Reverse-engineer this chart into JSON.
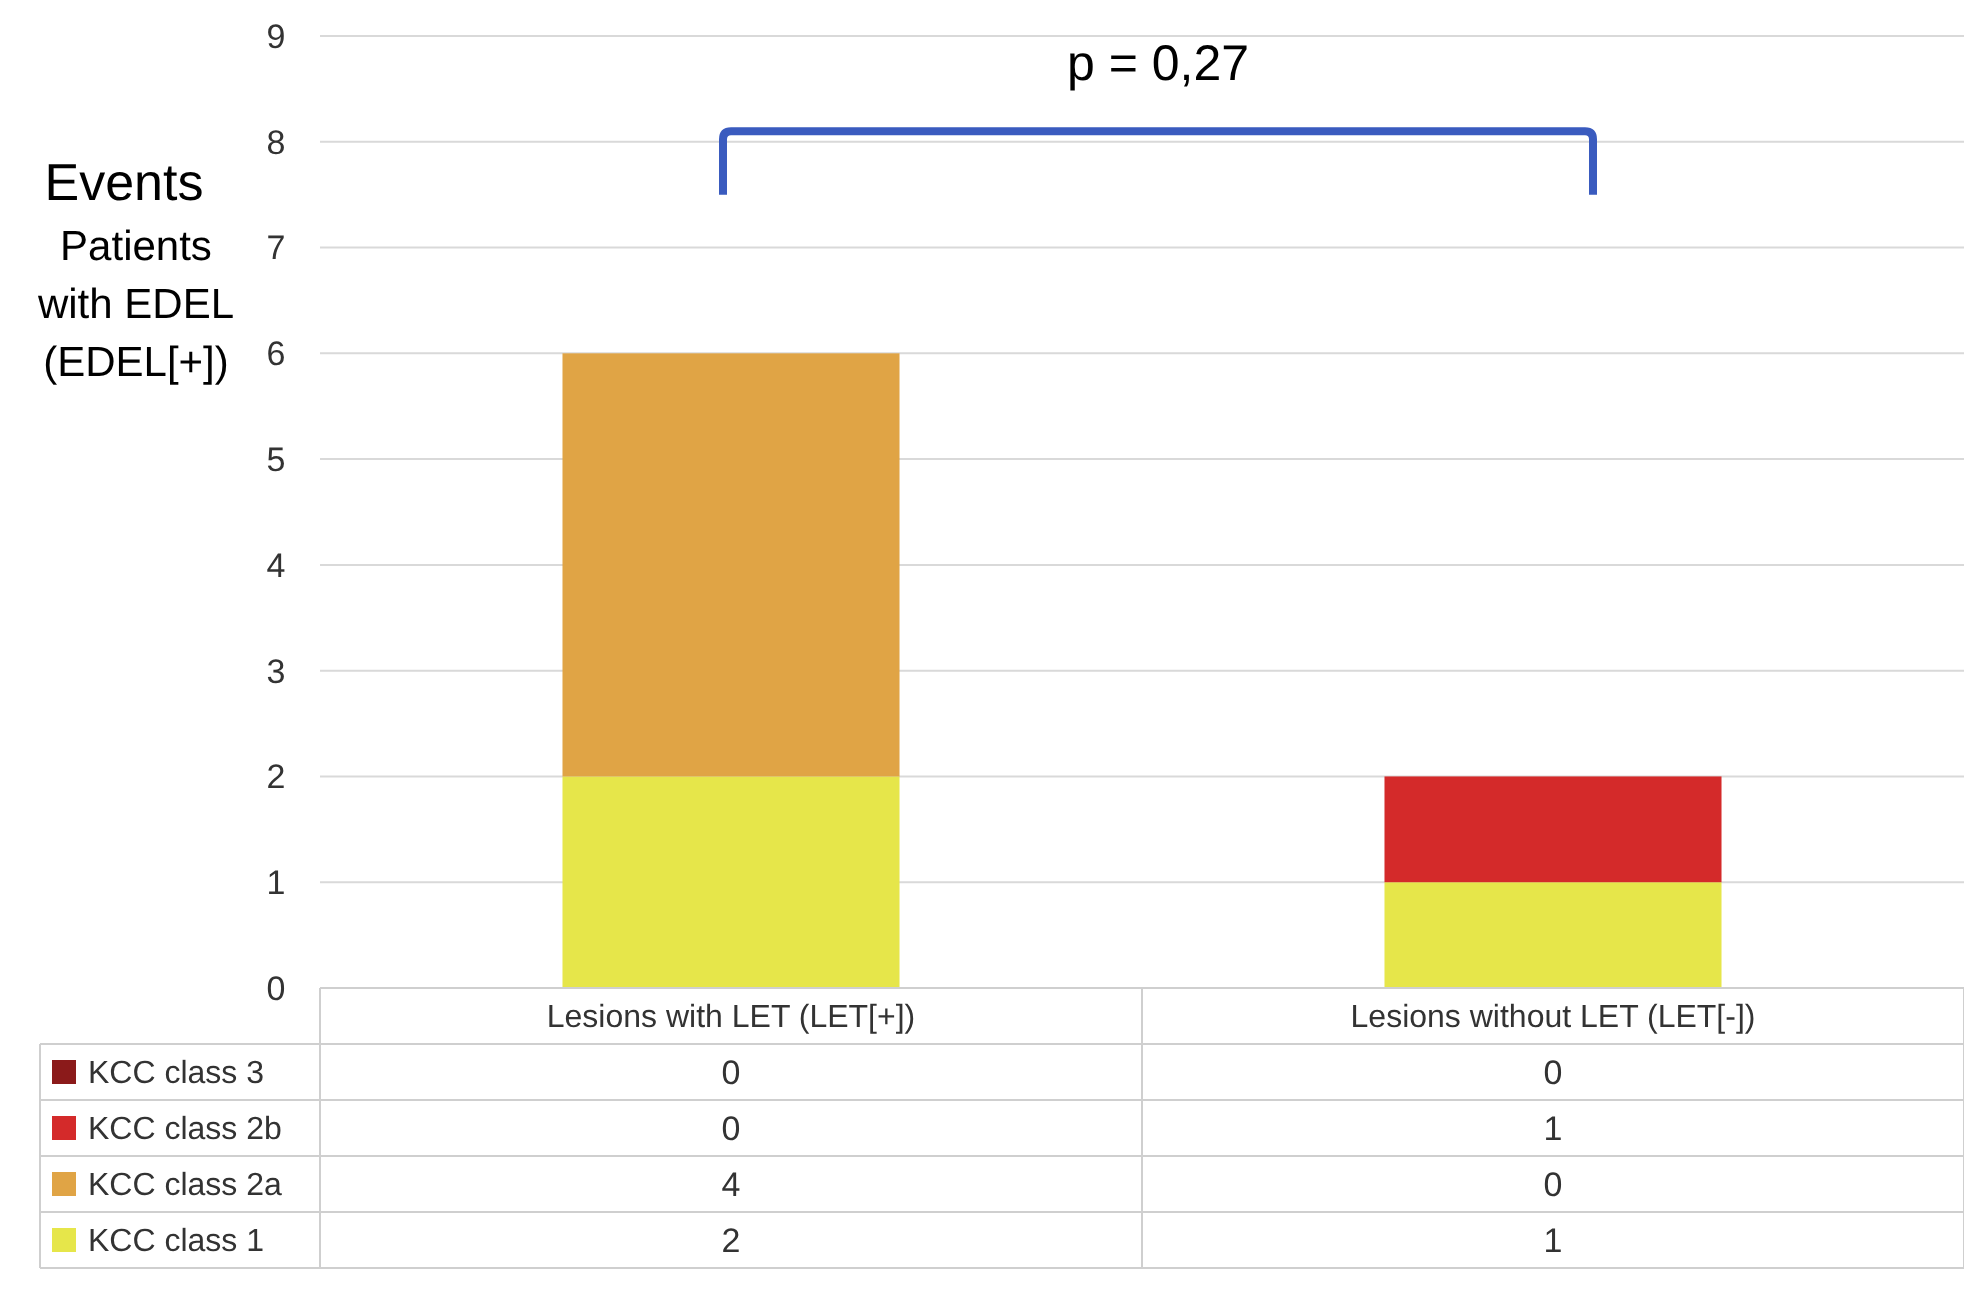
{
  "chart_data": {
    "type": "bar",
    "stacked": true,
    "ylabel": "Events\nPatients\nwith EDEL\n(EDEL[+])",
    "categories": [
      "Lesions with LET (LET[+])",
      "Lesions without LET (LET[-])"
    ],
    "series": [
      {
        "name": "KCC class 1",
        "color": "#e6e64a",
        "values": [
          2,
          1
        ]
      },
      {
        "name": "KCC class 2a",
        "color": "#e0a445",
        "values": [
          4,
          0
        ]
      },
      {
        "name": "KCC class 2b",
        "color": "#d42a2a",
        "values": [
          0,
          1
        ]
      },
      {
        "name": "KCC class 3",
        "color": "#8b1a1a",
        "values": [
          0,
          0
        ]
      }
    ],
    "ylim": [
      0,
      9
    ],
    "yticks": [
      0,
      1,
      2,
      3,
      4,
      5,
      6,
      7,
      8,
      9
    ],
    "grid": "y",
    "legend": "bottom",
    "data_labels": true,
    "annotations": [
      "p = 0,27"
    ]
  }
}
